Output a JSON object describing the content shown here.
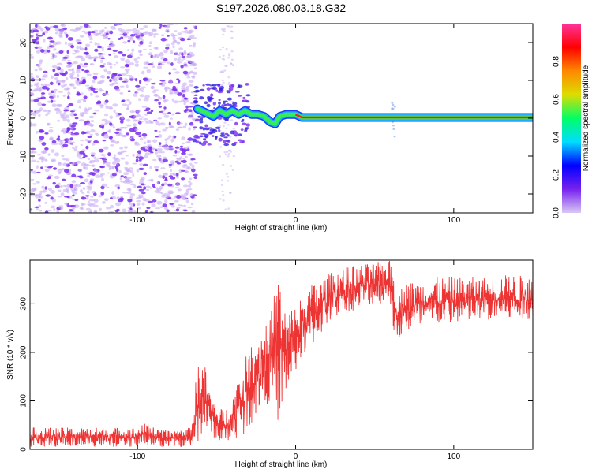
{
  "figure_title": "S197.2026.080.03.18.G32",
  "colors": {
    "snr_line": "#ee3333",
    "frame": "#000000",
    "scatter": "#7a2cf0",
    "curve_outer": "#22aaff",
    "curve_mid": "#33ee55",
    "curve_core": "#ee2222"
  },
  "chart_data": [
    {
      "type": "heatmap",
      "title": "S197.2026.080.03.18.G32",
      "xlabel": "Height of straight line (km)",
      "ylabel": "Frequency (Hz)",
      "xlim": [
        -168,
        150
      ],
      "ylim": [
        -25,
        25
      ],
      "xticks": [
        -100,
        0,
        100
      ],
      "xtick_labels": [
        "-100",
        "0",
        "100"
      ],
      "yticks": [
        -20,
        -10,
        0,
        10,
        20
      ],
      "ytick_labels": [
        "-20",
        "-10",
        "0",
        "10",
        "20"
      ],
      "dominant_frequency_track": {
        "x": [
          -62,
          -57,
          -52,
          -48,
          -44,
          -40,
          -36,
          -32,
          -28,
          -24,
          -20,
          -16,
          -13,
          -10,
          -6,
          -3,
          0,
          4,
          20,
          40,
          60,
          80,
          100,
          120,
          150
        ],
        "y": [
          2.5,
          1.5,
          0.5,
          2.0,
          1.0,
          2.0,
          1.0,
          2.0,
          1.0,
          1.0,
          0.5,
          -1.0,
          -1.5,
          0.5,
          1.0,
          1.0,
          1.0,
          0.2,
          0.2,
          0.2,
          0.2,
          0.2,
          0.2,
          0.2,
          0.2
        ]
      },
      "noise_region_x": [
        -168,
        -63
      ],
      "colorbar": {
        "label": "Normalized spectral amplitude",
        "range": [
          0.0,
          1.0
        ],
        "ticks": [
          0.0,
          0.2,
          0.4,
          0.6,
          0.8
        ],
        "tick_labels": [
          "0.0",
          "0.2",
          "0.4",
          "0.6",
          "0.8"
        ],
        "colors": [
          "#d8c8f4",
          "#7722ee",
          "#0000ff",
          "#00ddff",
          "#00ff66",
          "#dddd00",
          "#ff8800",
          "#ff0000",
          "#ff3399"
        ]
      }
    },
    {
      "type": "line",
      "xlabel": "Height of straight line (km)",
      "ylabel": "SNR (10 * v/v)",
      "xlim": [
        -168,
        150
      ],
      "ylim": [
        0,
        390
      ],
      "xticks": [
        -100,
        0,
        100
      ],
      "xtick_labels": [
        "-100",
        "0",
        "100"
      ],
      "yticks": [
        0,
        100,
        200,
        300
      ],
      "ytick_labels": [
        "0",
        "100",
        "200",
        "300"
      ],
      "series": [
        {
          "name": "SNR",
          "envelope_x": [
            -168,
            -100,
            -92,
            -88,
            -80,
            -66,
            -62,
            -58,
            -54,
            -50,
            -45,
            -40,
            -35,
            -30,
            -25,
            -20,
            -15,
            -12,
            -10,
            -8,
            -5,
            0,
            5,
            10,
            15,
            20,
            25,
            30,
            40,
            50,
            60,
            62,
            63,
            65,
            70,
            80,
            90,
            100,
            110,
            120,
            130,
            140,
            150
          ],
          "low": [
            5,
            5,
            10,
            5,
            5,
            5,
            10,
            40,
            30,
            20,
            10,
            20,
            25,
            40,
            70,
            90,
            100,
            60,
            50,
            90,
            120,
            160,
            190,
            210,
            230,
            255,
            270,
            280,
            290,
            300,
            300,
            240,
            210,
            225,
            240,
            245,
            255,
            260,
            260,
            265,
            265,
            265,
            270
          ],
          "high": [
            45,
            45,
            60,
            40,
            40,
            45,
            180,
            185,
            120,
            90,
            80,
            110,
            170,
            200,
            240,
            260,
            290,
            355,
            360,
            310,
            290,
            300,
            320,
            340,
            350,
            360,
            370,
            375,
            380,
            385,
            390,
            380,
            340,
            330,
            345,
            350,
            355,
            355,
            355,
            355,
            360,
            360,
            355
          ]
        }
      ]
    }
  ]
}
